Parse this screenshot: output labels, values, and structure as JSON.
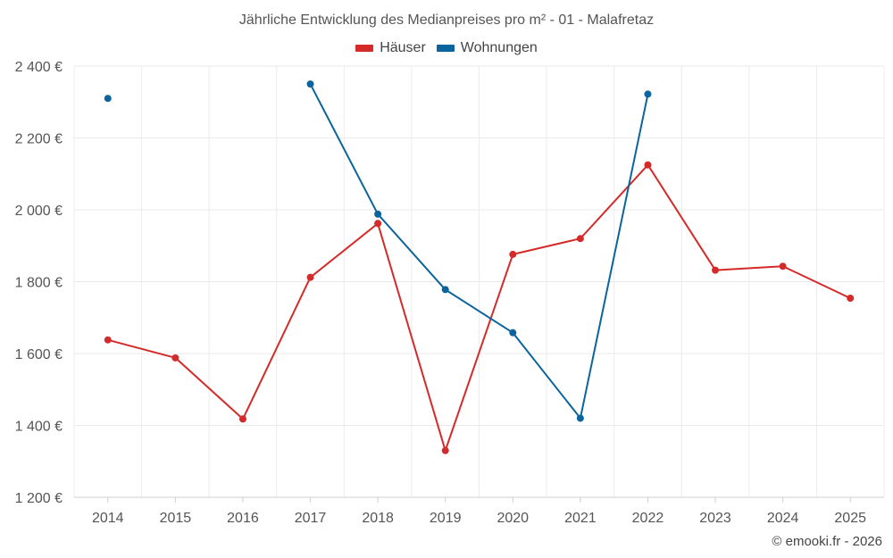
{
  "chart_data": {
    "type": "line",
    "title": "Jährliche Entwicklung des Medianpreises pro m² - 01 - Malafretaz",
    "xlabel": "",
    "ylabel": "",
    "categories": [
      "2014",
      "2015",
      "2016",
      "2017",
      "2018",
      "2019",
      "2020",
      "2021",
      "2022",
      "2023",
      "2024",
      "2025"
    ],
    "ylim": [
      1200,
      2400
    ],
    "yticks": [
      1200,
      1400,
      1600,
      1800,
      2000,
      2200,
      2400
    ],
    "ytick_labels": [
      "1 200 €",
      "1 400 €",
      "1 600 €",
      "1 800 €",
      "2 000 €",
      "2 200 €",
      "2 400 €"
    ],
    "grid": true,
    "legend_position": "top-center",
    "series": [
      {
        "name": "Häuser",
        "color": "#d42a2a",
        "values": [
          1638,
          1588,
          1418,
          1812,
          1962,
          1330,
          1876,
          1920,
          2125,
          1832,
          1843,
          1754
        ]
      },
      {
        "name": "Wohnungen",
        "color": "#0b649b",
        "values": [
          2310,
          null,
          null,
          2350,
          1988,
          1778,
          1658,
          1420,
          2322,
          null,
          null,
          null
        ]
      }
    ]
  },
  "legend": {
    "items": [
      {
        "label": "Häuser",
        "color": "#d42a2a"
      },
      {
        "label": "Wohnungen",
        "color": "#0b649b"
      }
    ]
  },
  "credit": "© emooki.fr - 2026"
}
